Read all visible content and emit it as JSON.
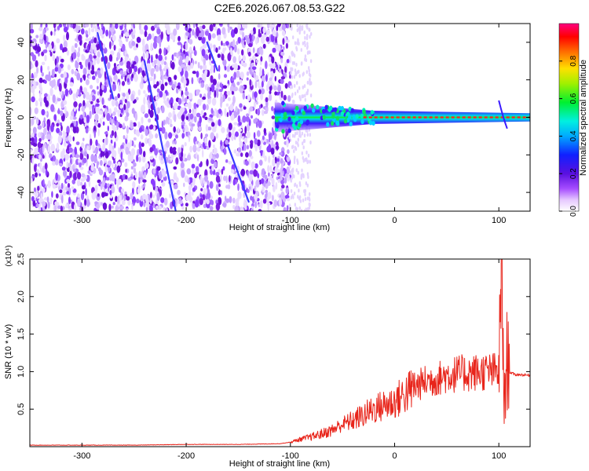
{
  "title": "C2E6.2026.067.08.53.G22",
  "colors": {
    "snr_line": "#e8251b",
    "spectro_speckle": "#7b1fe0",
    "spectro_bg": "#ffffff"
  },
  "chart_data": [
    {
      "type": "heatmap",
      "xlabel": "Height of straight line (km)",
      "ylabel": "Frequency (Hz)",
      "xlim": [
        -350,
        130
      ],
      "ylim": [
        -50,
        50
      ],
      "xticks": [
        -300,
        -200,
        -100,
        0,
        100
      ],
      "yticks": [
        -40,
        -20,
        0,
        20,
        40
      ],
      "colorbar": {
        "label": "Normalized spectral amplitude",
        "range": [
          0,
          1
        ],
        "ticks": [
          "0.0",
          "0.2",
          "0.4",
          "0.6",
          "0.8"
        ],
        "colormap": "rainbow (white-violet-blue-cyan-green-yellow-red-magenta)"
      },
      "features": [
        {
          "region": "noise speckle",
          "x_range": [
            -350,
            -100
          ],
          "freq_range": [
            -50,
            50
          ],
          "amplitude": "low (0.1-0.3)"
        },
        {
          "region": "partial speckle",
          "x_range": [
            -100,
            -80
          ],
          "freq_range": [
            -50,
            50
          ],
          "amplitude": "very low"
        },
        {
          "region": "carrier band",
          "x_range": [
            -115,
            130
          ],
          "center_freq": 0,
          "half_width_hz": [
            8,
            2
          ],
          "peak_amplitude": 1.0
        }
      ]
    },
    {
      "type": "line",
      "xlabel": "Height of straight line (km)",
      "ylabel": "SNR (10 * v/v)",
      "y_multiplier": "(x10⁴)",
      "xlim": [
        -350,
        130
      ],
      "ylim": [
        0,
        2.5
      ],
      "xticks": [
        -300,
        -200,
        -100,
        0,
        100
      ],
      "yticks": [
        "0.5",
        "1.0",
        "1.5",
        "2.0",
        "2.5"
      ],
      "series": [
        {
          "x": [
            -350,
            -300,
            -250,
            -200,
            -150,
            -110,
            -100,
            -90,
            -80,
            -70,
            -60,
            -50,
            -40,
            -30,
            -20,
            -10,
            0,
            10,
            20,
            30,
            40,
            50,
            60,
            70,
            80,
            90,
            95,
            100,
            103,
            105,
            108,
            110,
            115,
            120,
            130
          ],
          "y": [
            0.02,
            0.02,
            0.02,
            0.03,
            0.03,
            0.04,
            0.06,
            0.1,
            0.13,
            0.17,
            0.22,
            0.3,
            0.35,
            0.42,
            0.5,
            0.55,
            0.6,
            0.7,
            0.8,
            0.87,
            0.9,
            0.95,
            0.97,
            0.98,
            0.99,
            1.0,
            1.0,
            1.0,
            2.5,
            0.5,
            1.2,
            1.0,
            0.96,
            0.96,
            0.95
          ]
        }
      ]
    }
  ]
}
